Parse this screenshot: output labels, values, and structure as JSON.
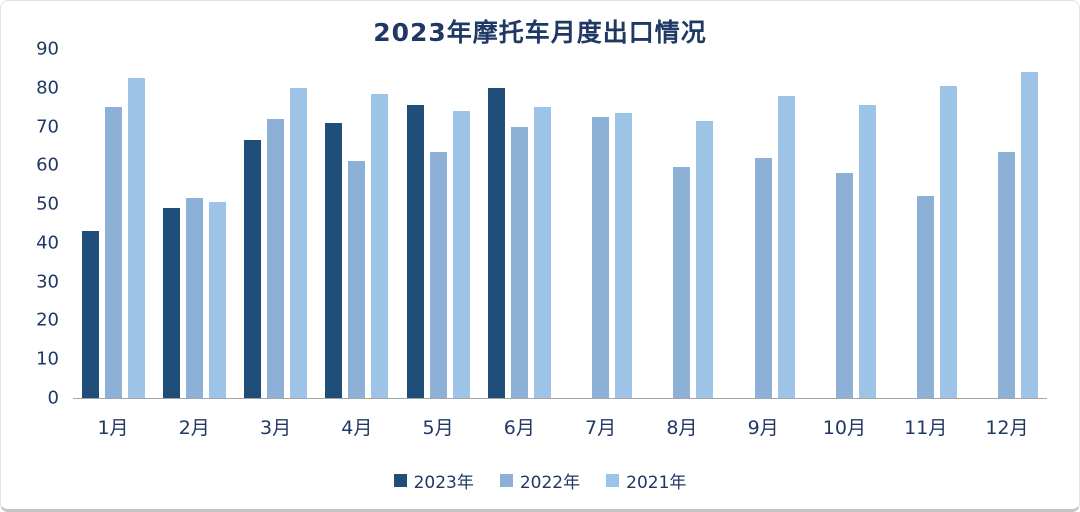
{
  "chart_data": {
    "type": "bar",
    "title": "2023年摩托车月度出口情况",
    "categories": [
      "1月",
      "2月",
      "3月",
      "4月",
      "5月",
      "6月",
      "7月",
      "8月",
      "9月",
      "10月",
      "11月",
      "12月"
    ],
    "series": [
      {
        "name": "2023年",
        "color": "#1F4E79",
        "values": [
          43,
          49,
          66.5,
          71,
          75.5,
          80,
          null,
          null,
          null,
          null,
          null,
          null
        ]
      },
      {
        "name": "2022年",
        "color": "#8CB0D6",
        "values": [
          75,
          51.5,
          72,
          61,
          63.5,
          70,
          72.5,
          59.5,
          62,
          58,
          52,
          63.5
        ]
      },
      {
        "name": "2021年",
        "color": "#9DC3E6",
        "values": [
          82.5,
          50.5,
          80,
          78.5,
          74,
          75,
          73.5,
          71.5,
          78,
          75.5,
          80.5,
          84
        ]
      }
    ],
    "ylim": [
      0,
      90
    ],
    "yticks": [
      0,
      10,
      20,
      30,
      40,
      50,
      60,
      70,
      80,
      90
    ],
    "xlabel": "",
    "ylabel": "",
    "grid": false,
    "legend_position": "bottom",
    "colors": {
      "title_text": "#1F3864",
      "axis_text": "#1F3864",
      "axis_line": "#A6A6A6"
    }
  }
}
